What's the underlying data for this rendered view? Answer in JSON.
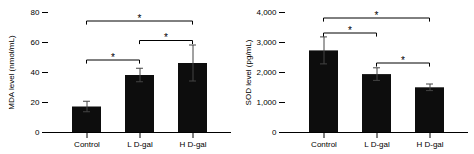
{
  "chart_data": [
    {
      "type": "bar",
      "ylabel": "MDA level (nmol/mL)",
      "categories": [
        "Control",
        "L D-gal",
        "H D-gal"
      ],
      "values": [
        17,
        38,
        46
      ],
      "errors": [
        3.5,
        4.5,
        12
      ],
      "color": "#0d0d0d",
      "ylim": [
        0,
        80
      ],
      "yticks": [
        0,
        20,
        40,
        60,
        80
      ],
      "annotations": [
        {
          "x1": "Control",
          "x2": "L D-gal",
          "y": 48,
          "label": "*"
        },
        {
          "x1": "Control",
          "x2": "H D-gal",
          "y": 74,
          "label": "*"
        },
        {
          "x1": "L D-gal",
          "x2": "H D-gal",
          "y": 61,
          "label": "*"
        }
      ]
    },
    {
      "type": "bar",
      "ylabel": "SOD level (pg/mL)",
      "categories": [
        "Control",
        "L D-gal",
        "H D-gal"
      ],
      "values": [
        2720,
        1930,
        1490
      ],
      "errors": [
        450,
        210,
        110
      ],
      "color": "#0d0d0d",
      "ylim": [
        0,
        4000
      ],
      "yticks": [
        0,
        {
          "value": 1000,
          "label": "1,000"
        },
        {
          "value": 2000,
          "label": "2,000"
        },
        {
          "value": 3000,
          "label": "3,000"
        },
        {
          "value": 4000,
          "label": "4,000"
        }
      ],
      "annotations": [
        {
          "x1": "Control",
          "x2": "L D-gal",
          "y": 3300,
          "label": "*"
        },
        {
          "x1": "Control",
          "x2": "H D-gal",
          "y": 3800,
          "label": "*"
        },
        {
          "x1": "L D-gal",
          "x2": "H D-gal",
          "y": 2300,
          "label": "*"
        }
      ]
    }
  ]
}
